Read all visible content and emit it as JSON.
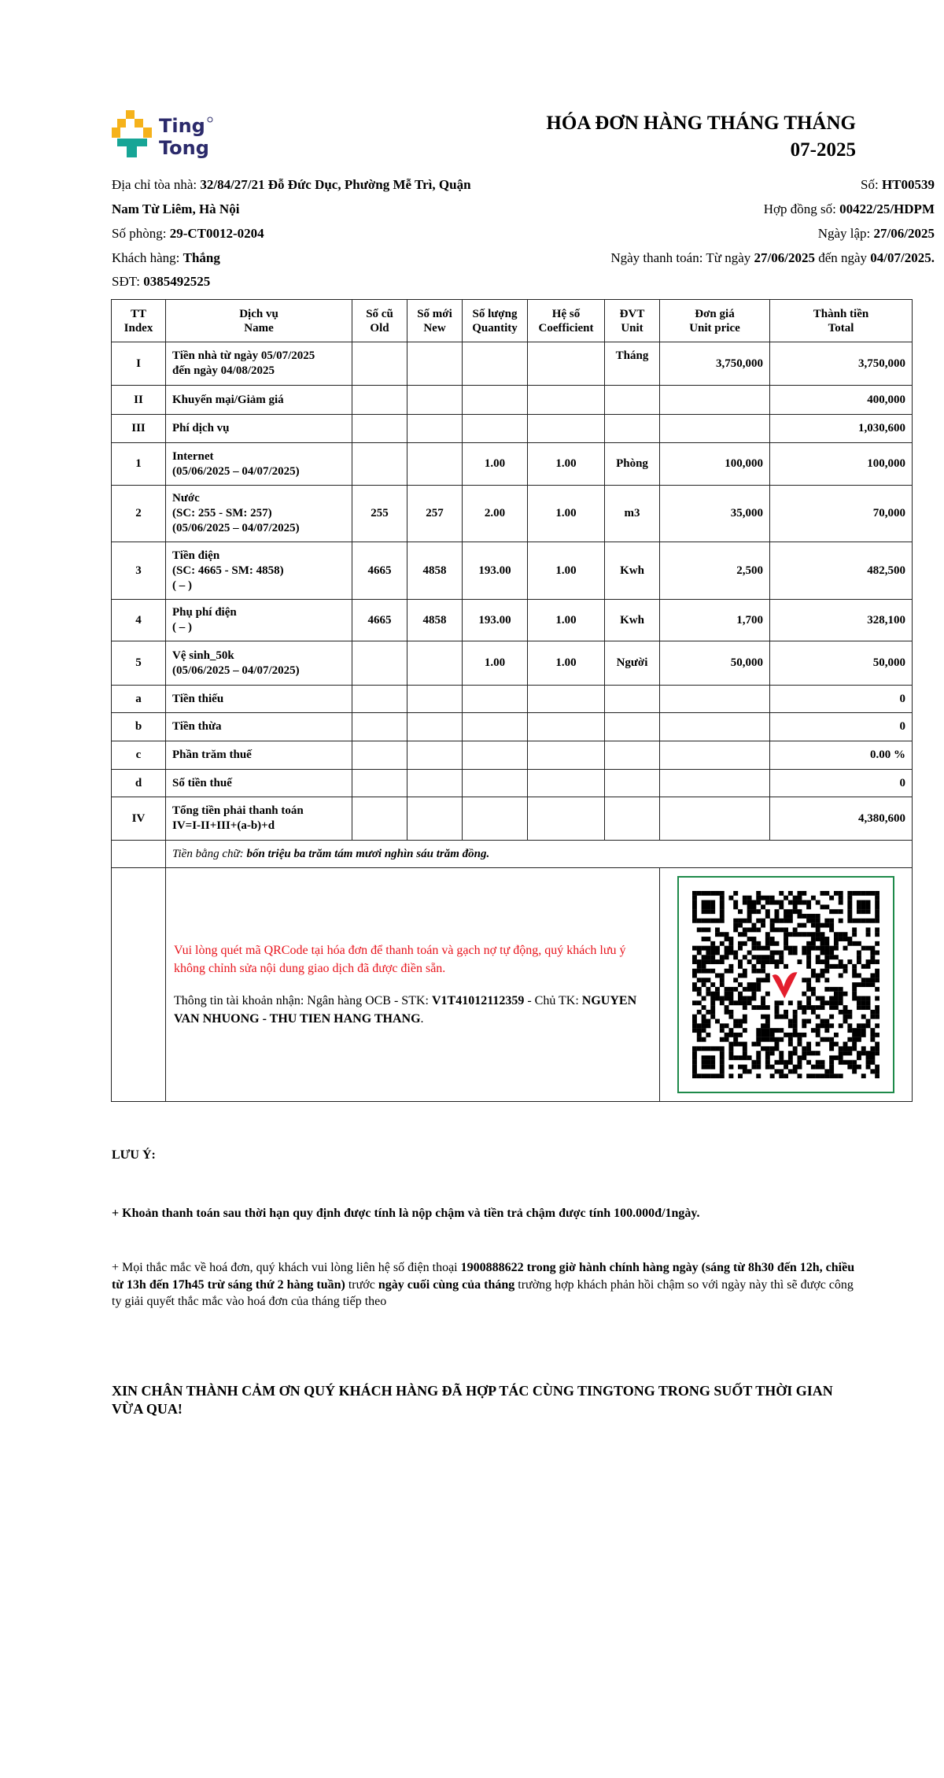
{
  "brand": {
    "name": "Ting Tong",
    "colors": {
      "yellow": "#f5b21b",
      "teal": "#17a596",
      "navy": "#2b2a6b"
    }
  },
  "title": "HÓA ĐƠN HÀNG THÁNG THÁNG 07-2025",
  "info": {
    "address_label": "Địa chỉ tòa nhà: ",
    "address_line1": "32/84/27/21 Đỗ Đức Dục, Phường Mễ Trì, Quận",
    "address_line2": "Nam Từ Liêm, Hà Nội",
    "room_label": "Số phòng: ",
    "room": "29-CT0012-0204",
    "customer_label": "Khách hàng: ",
    "customer": "Thắng",
    "phone_label": "SĐT: ",
    "phone": "0385492525",
    "number_label": "Số: ",
    "number": "HT00539",
    "contract_label": "Hợp đồng số: ",
    "contract": "00422/25/HDPM",
    "created_label": "Ngày lập: ",
    "created": "27/06/2025",
    "payment_label": "Ngày thanh toán: Từ ngày ",
    "payment_from": "27/06/2025",
    "payment_mid": " đến ngày ",
    "payment_to": "04/07/2025."
  },
  "table": {
    "headers": [
      [
        "TT",
        "Index"
      ],
      [
        "Dịch vụ",
        "Name"
      ],
      [
        "Số cũ",
        "Old"
      ],
      [
        "Số mới",
        "New"
      ],
      [
        "Số lượng",
        "Quantity"
      ],
      [
        "Hệ số",
        "Coefficient"
      ],
      [
        "ĐVT",
        "Unit"
      ],
      [
        "Đơn giá",
        "Unit price"
      ],
      [
        "Thành tiền",
        "Total"
      ]
    ],
    "rows": [
      {
        "index": "I",
        "name": [
          "Tiền nhà từ ngày 05/07/2025",
          "đến ngày 04/08/2025"
        ],
        "old": "",
        "new": "",
        "qty": "",
        "coef": "",
        "unit": "Tháng",
        "price": "3,750,000",
        "total": "3,750,000"
      },
      {
        "index": "II",
        "name": [
          "Khuyến mại/Giảm giá"
        ],
        "old": "",
        "new": "",
        "qty": "",
        "coef": "",
        "unit": "",
        "price": "",
        "total": "400,000"
      },
      {
        "index": "III",
        "name": [
          "Phí dịch vụ"
        ],
        "old": "",
        "new": "",
        "qty": "",
        "coef": "",
        "unit": "",
        "price": "",
        "total": "1,030,600"
      },
      {
        "index": "1",
        "name": [
          "Internet",
          "(05/06/2025 – 04/07/2025)"
        ],
        "old": "",
        "new": "",
        "qty": "1.00",
        "coef": "1.00",
        "unit": "Phòng",
        "price": "100,000",
        "total": "100,000"
      },
      {
        "index": "2",
        "name": [
          "Nước",
          "(SC: 255 - SM: 257)",
          "(05/06/2025 – 04/07/2025)"
        ],
        "old": "255",
        "new": "257",
        "qty": "2.00",
        "coef": "1.00",
        "unit": "m3",
        "price": "35,000",
        "total": "70,000"
      },
      {
        "index": "3",
        "name": [
          "Tiền điện",
          "(SC: 4665 - SM: 4858)",
          "( – )"
        ],
        "old": "4665",
        "new": "4858",
        "qty": "193.00",
        "coef": "1.00",
        "unit": "Kwh",
        "price": "2,500",
        "total": "482,500"
      },
      {
        "index": "4",
        "name": [
          "Phụ phí điện",
          "( – )"
        ],
        "old": "4665",
        "new": "4858",
        "qty": "193.00",
        "coef": "1.00",
        "unit": "Kwh",
        "price": "1,700",
        "total": "328,100"
      },
      {
        "index": "5",
        "name": [
          "Vệ sinh_50k",
          "(05/06/2025 – 04/07/2025)"
        ],
        "old": "",
        "new": "",
        "qty": "1.00",
        "coef": "1.00",
        "unit": "Người",
        "price": "50,000",
        "total": "50,000"
      },
      {
        "index": "a",
        "name": [
          "Tiền thiếu"
        ],
        "old": "",
        "new": "",
        "qty": "",
        "coef": "",
        "unit": "",
        "price": "",
        "total": "0"
      },
      {
        "index": "b",
        "name": [
          "Tiền thừa"
        ],
        "old": "",
        "new": "",
        "qty": "",
        "coef": "",
        "unit": "",
        "price": "",
        "total": "0"
      },
      {
        "index": "c",
        "name": [
          "Phần trăm thuế"
        ],
        "old": "",
        "new": "",
        "qty": "",
        "coef": "",
        "unit": "",
        "price": "",
        "total": "0.00 %"
      },
      {
        "index": "d",
        "name": [
          "Số tiền thuế"
        ],
        "old": "",
        "new": "",
        "qty": "",
        "coef": "",
        "unit": "",
        "price": "",
        "total": "0"
      },
      {
        "index": "IV",
        "name": [
          "Tổng tiền phải thanh toán",
          "IV=I-II+III+(a-b)+d"
        ],
        "old": "",
        "new": "",
        "qty": "",
        "coef": "",
        "unit": "",
        "price": "",
        "total": "4,380,600"
      }
    ],
    "words_label": "Tiền bằng chữ: ",
    "words": "bốn triệu ba trăm tám mươi nghìn sáu trăm đồng.",
    "qr_notice": "Vui lòng quét mã QRCode tại hóa đơn để thanh toán và gạch nợ tự động, quý khách lưu ý không chỉnh sửa nội dung giao dịch đã được điền sẵn.",
    "account_label": "Thông tin tài khoản nhận: Ngân hàng OCB - STK: ",
    "account_number": "V1T41012112359",
    "account_owner_label": " - Chủ TK: ",
    "account_owner": "NGUYEN VAN NHUONG - THU TIEN HANG THANG",
    "account_end": "."
  },
  "notes": {
    "heading": "LƯU Ý:",
    "line1": "+ Khoản thanh toán sau thời hạn quy định được tính là nộp chậm và tiền trả chậm được tính 100.000đ/1ngày.",
    "p2a": "+ Mọi thắc mắc về hoá đơn, quý khách vui lòng liên hệ số điện thoại ",
    "p2b": "1900888622 trong giờ hành chính hàng ngày (sáng từ 8h30 đến 12h, chiều từ 13h đến 17h45 trừ sáng thứ 2 hàng tuần)",
    "p2c": " trước ",
    "p2d": "ngày cuối cùng của tháng",
    "p2e": " trường hợp khách phản hồi chậm so với ngày này thì sẽ được công ty giải quyết thắc mắc vào hoá đơn của tháng tiếp theo",
    "thanks": "XIN CHÂN THÀNH CẢM ƠN QUÝ KHÁCH HÀNG ĐÃ HỢP TÁC CÙNG TINGTONG TRONG SUỐT THỜI GIAN VỪA QUA!"
  }
}
